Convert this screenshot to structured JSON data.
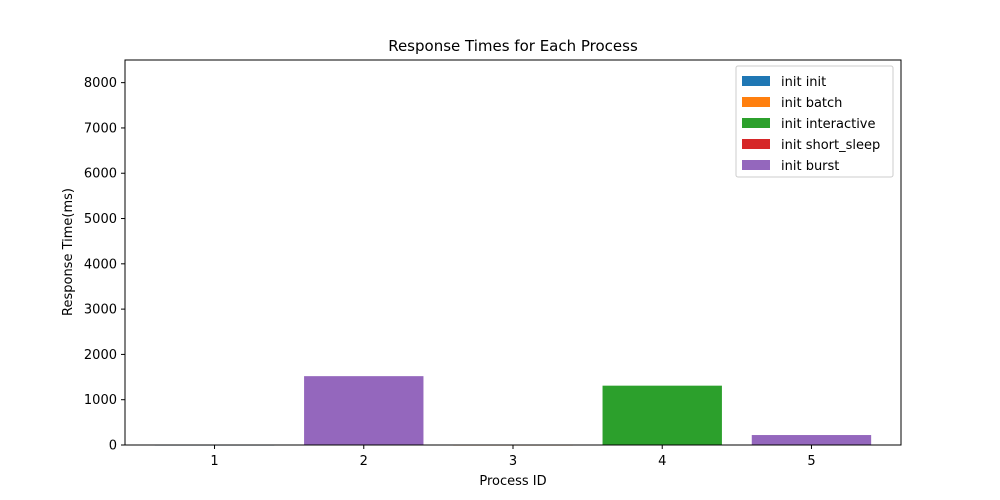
{
  "chart_data": {
    "type": "bar",
    "title": "Response Times for Each Process",
    "xlabel": "Process ID",
    "ylabel": "Response Time(ms)",
    "categories": [
      "1",
      "2",
      "3",
      "4",
      "5"
    ],
    "ylim": [
      0,
      8500
    ],
    "yticks": [
      0,
      1000,
      2000,
      3000,
      4000,
      5000,
      6000,
      7000,
      8000
    ],
    "grid": false,
    "legend_position": "top-right",
    "series": [
      {
        "name": "init init",
        "color": "#1f77b4",
        "values": [
          10,
          0,
          0,
          0,
          0
        ]
      },
      {
        "name": "init batch",
        "color": "#ff7f0e",
        "values": [
          0,
          0,
          10,
          0,
          0
        ]
      },
      {
        "name": "init interactive",
        "color": "#2ca02c",
        "values": [
          0,
          0,
          0,
          1310,
          0
        ]
      },
      {
        "name": "init short_sleep",
        "color": "#d62728",
        "values": [
          0,
          0,
          0,
          0,
          0
        ]
      },
      {
        "name": "init burst",
        "color": "#9467bd",
        "values": [
          0,
          1520,
          0,
          0,
          220
        ]
      }
    ]
  }
}
